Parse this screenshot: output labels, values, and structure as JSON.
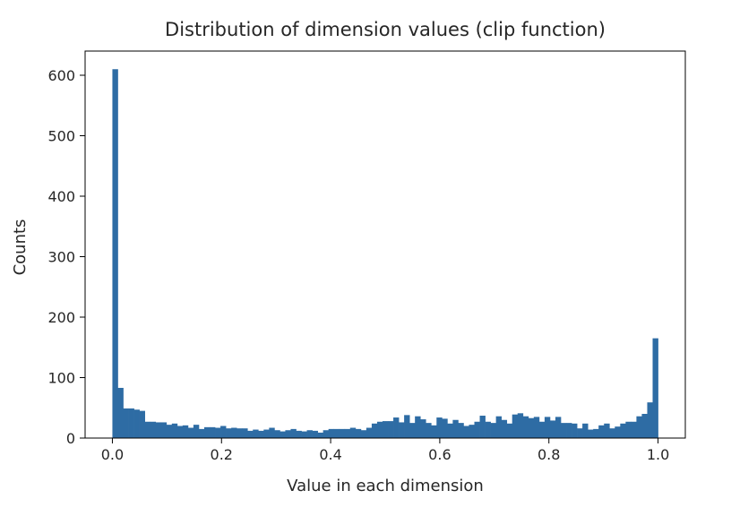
{
  "chart_data": {
    "type": "bar",
    "subtype": "histogram",
    "title": "Distribution of dimension values (clip function)",
    "xlabel": "Value in each dimension",
    "ylabel": "Counts",
    "xlim": [
      -0.05,
      1.05
    ],
    "ylim": [
      0,
      640
    ],
    "bin_range": [
      0,
      1
    ],
    "xticks": [
      0.0,
      0.2,
      0.4,
      0.6,
      0.8,
      1.0
    ],
    "xtick_labels": [
      "0.0",
      "0.2",
      "0.4",
      "0.6",
      "0.8",
      "1.0"
    ],
    "yticks": [
      0,
      100,
      200,
      300,
      400,
      500,
      600
    ],
    "ytick_labels": [
      "0",
      "100",
      "200",
      "300",
      "400",
      "500",
      "600"
    ],
    "grid": false,
    "legend": "none",
    "bar_color": "#2e6ca4",
    "values": [
      610,
      83,
      49,
      49,
      47,
      45,
      27,
      27,
      26,
      26,
      22,
      24,
      20,
      21,
      17,
      22,
      15,
      18,
      18,
      17,
      20,
      16,
      17,
      16,
      16,
      12,
      14,
      12,
      14,
      17,
      13,
      11,
      13,
      15,
      12,
      11,
      13,
      12,
      9,
      13,
      15,
      15,
      15,
      15,
      17,
      15,
      13,
      17,
      24,
      27,
      28,
      28,
      34,
      26,
      38,
      25,
      36,
      31,
      25,
      21,
      34,
      32,
      24,
      30,
      25,
      20,
      22,
      27,
      37,
      27,
      25,
      36,
      30,
      24,
      39,
      41,
      36,
      33,
      35,
      27,
      35,
      29,
      35,
      25,
      25,
      24,
      16,
      24,
      14,
      15,
      21,
      24,
      16,
      19,
      24,
      27,
      27,
      36,
      40,
      59,
      165
    ]
  }
}
